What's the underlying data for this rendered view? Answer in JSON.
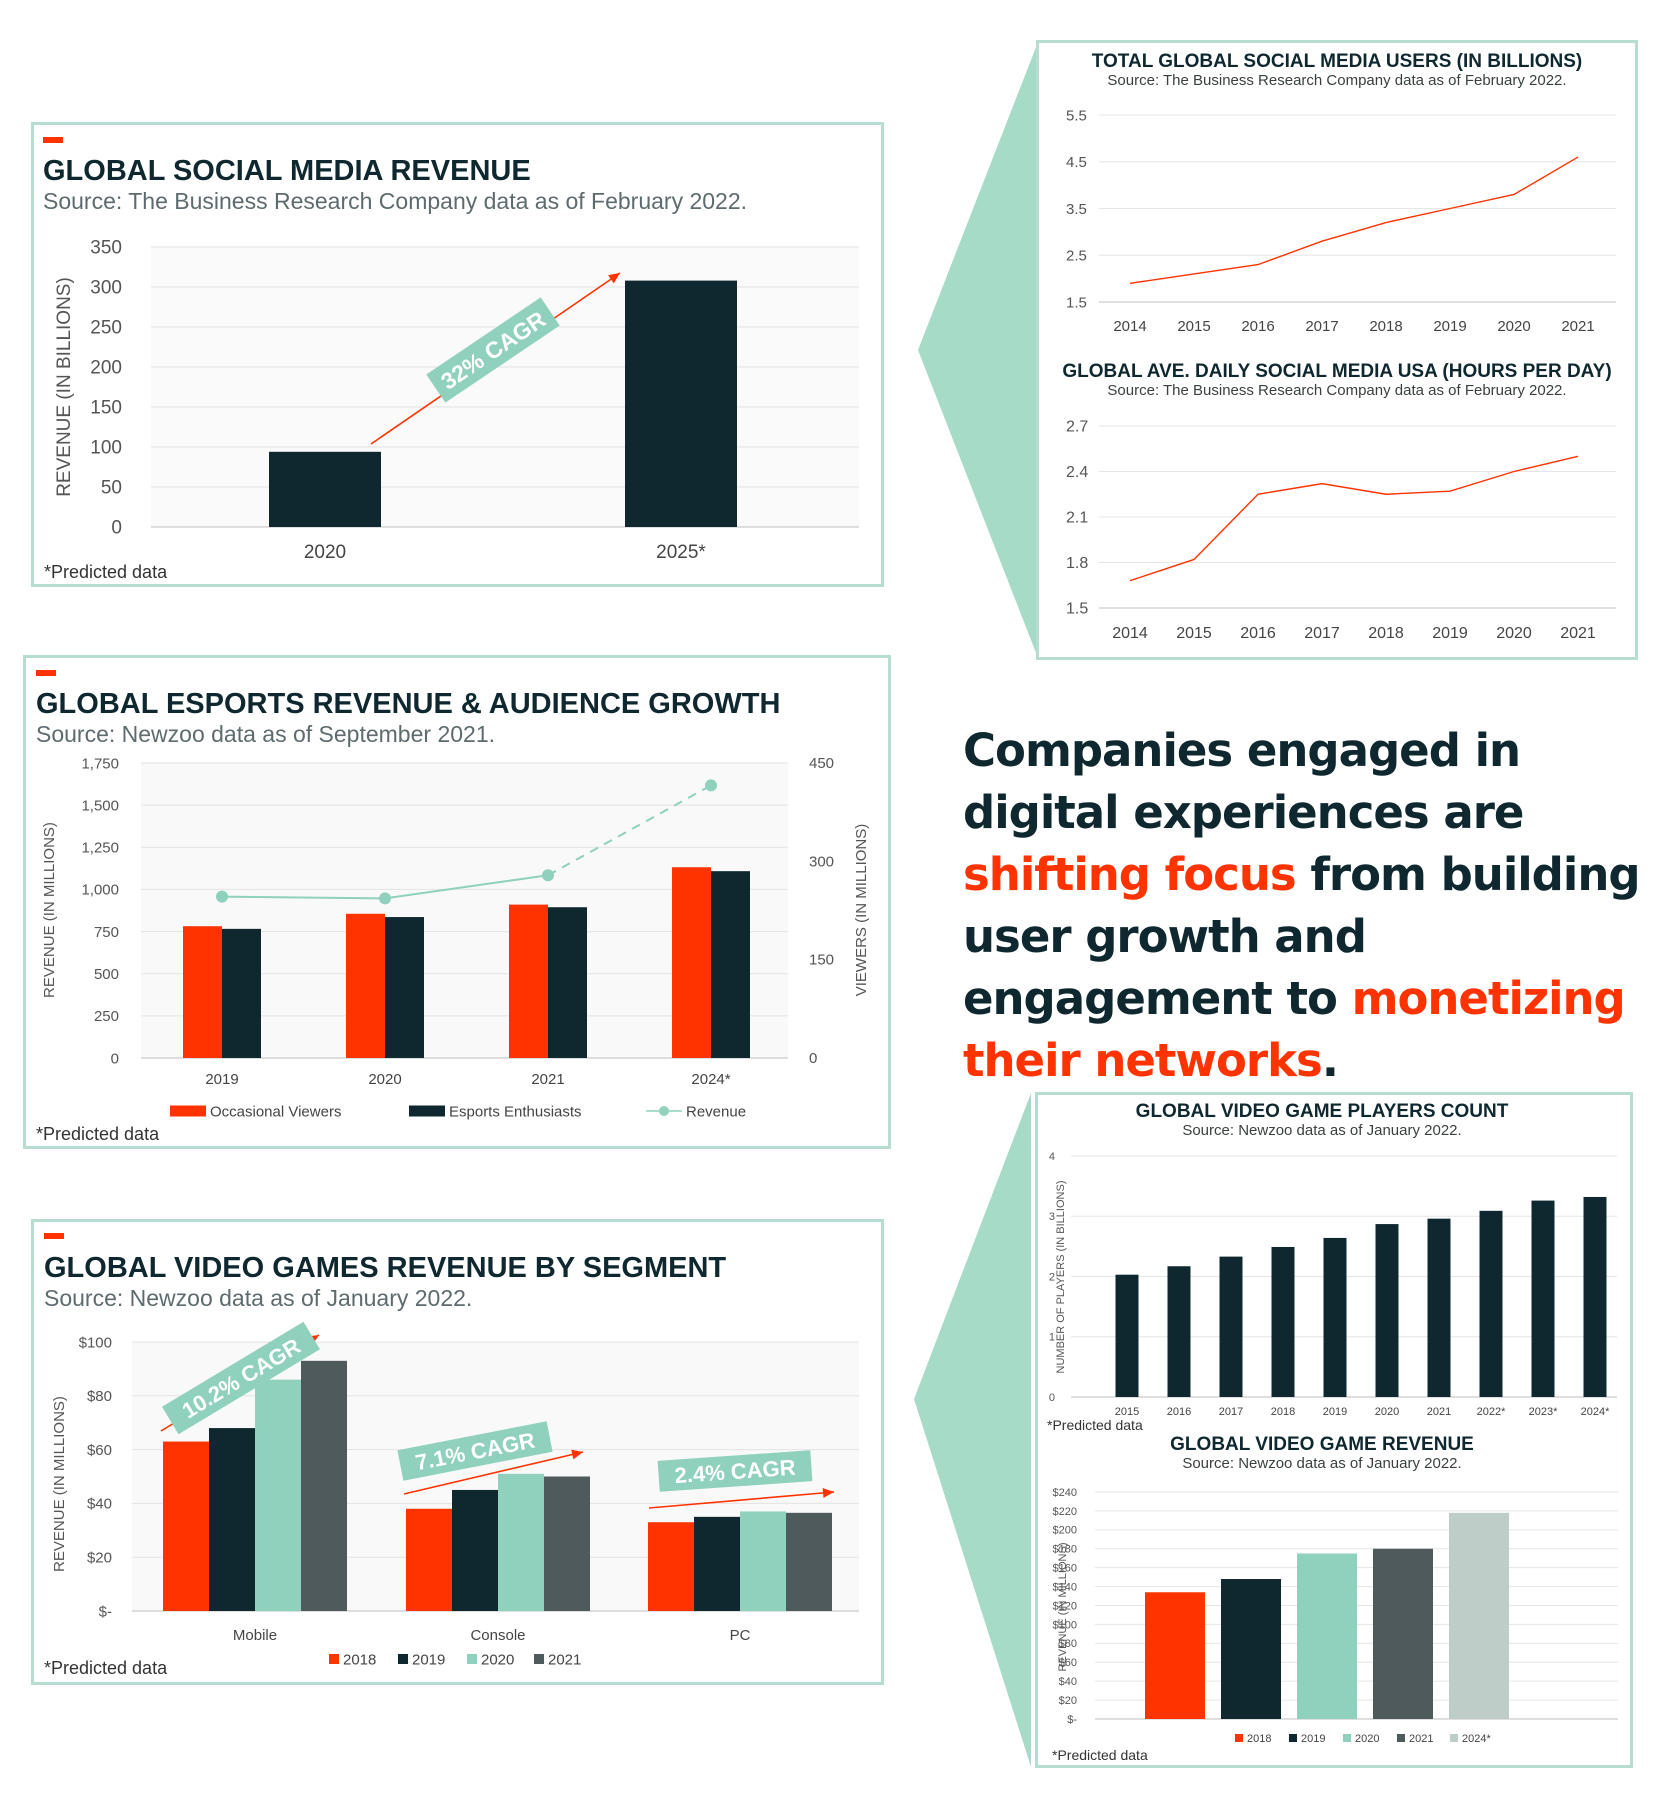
{
  "colors": {
    "red": "#ff3300",
    "navy": "#0f2830",
    "mint": "#8fd1bc",
    "slate": "#4e5a5b",
    "light": "#bfcdc8",
    "border": "#b7ddd0"
  },
  "headline": {
    "part1": "Companies engaged in digital experiences are ",
    "hl1": "shifting focus",
    "part2": " from building user growth and engagement to ",
    "hl2": "monetizing their networks",
    "part3": "."
  },
  "panels": {
    "social_revenue": {
      "title": "GLOBAL SOCIAL MEDIA REVENUE",
      "source": "Source: The Business Research Company data as of February 2022.",
      "note": "*Predicted data",
      "cagr": "32% CAGR"
    },
    "esports": {
      "title": "GLOBAL ESPORTS REVENUE & AUDIENCE GROWTH",
      "source": "Source: Newzoo data as of September 2021.",
      "note": "*Predicted data"
    },
    "vg_segment": {
      "title": "GLOBAL VIDEO GAMES REVENUE BY SEGMENT",
      "source": "Source: Newzoo data as of January 2022.",
      "note": "*Predicted data",
      "cagr": [
        "10.2% CAGR",
        "7.1% CAGR",
        "2.4% CAGR"
      ]
    },
    "social_users": {
      "title": "TOTAL GLOBAL SOCIAL MEDIA USERS (IN BILLIONS)",
      "source": "Source: The Business Research Company data as of February 2022."
    },
    "daily_usage": {
      "title": "GLOBAL AVE. DAILY SOCIAL MEDIA USA (HOURS PER DAY)",
      "source": "Source: The Business Research Company data as of February 2022."
    },
    "players": {
      "title": "GLOBAL VIDEO GAME PLAYERS COUNT",
      "source": "Source: Newzoo data as of January 2022.",
      "note": "*Predicted data"
    },
    "vg_revenue": {
      "title": "GLOBAL VIDEO GAME REVENUE",
      "source": "Source: Newzoo data as of January 2022.",
      "note": "*Predicted data"
    }
  },
  "chart_data": [
    {
      "id": "social_revenue",
      "type": "bar",
      "title": "GLOBAL SOCIAL MEDIA REVENUE",
      "categories": [
        "2020",
        "2025*"
      ],
      "values": [
        94,
        308
      ],
      "ylabel": "REVENUE (IN BILLIONS)",
      "ylim": [
        0,
        350
      ],
      "yticks": [
        "0",
        "50",
        "100",
        "150",
        "200",
        "250",
        "300",
        "350"
      ],
      "annotation": "32% CAGR",
      "grid": true
    },
    {
      "id": "esports",
      "type": "bar",
      "title": "GLOBAL ESPORTS REVENUE & AUDIENCE GROWTH",
      "categories": [
        "2019",
        "2020",
        "2021",
        "2024*"
      ],
      "series": [
        {
          "name": "Occasional Viewers",
          "values": [
            201,
            220,
            234,
            291
          ]
        },
        {
          "name": "Esports Enthusiasts",
          "values": [
            197,
            215,
            230,
            285
          ]
        },
        {
          "name": "Revenue",
          "type": "line",
          "axis": "left",
          "values": [
            957,
            947,
            1084,
            1617
          ]
        }
      ],
      "ylabel": "REVENUE (IN MILLIONS)",
      "y2label": "VIEWERS (IN MILLIONS)",
      "ylim": [
        0,
        1750
      ],
      "y2lim": [
        0,
        450
      ],
      "yticks": [
        "0",
        "250",
        "500",
        "750",
        "1,000",
        "1,250",
        "1,500",
        "1,750"
      ],
      "y2ticks": [
        "0",
        "150",
        "300",
        "450"
      ],
      "legend": "bottom",
      "grid": true
    },
    {
      "id": "vg_segment",
      "type": "bar",
      "title": "GLOBAL VIDEO GAMES REVENUE BY SEGMENT",
      "categories": [
        "Mobile",
        "Console",
        "PC"
      ],
      "series": [
        {
          "name": "2018",
          "values": [
            63,
            38,
            33
          ]
        },
        {
          "name": "2019",
          "values": [
            68,
            45,
            35
          ]
        },
        {
          "name": "2020",
          "values": [
            86,
            51,
            37
          ]
        },
        {
          "name": "2021",
          "values": [
            93,
            50,
            36.5
          ]
        }
      ],
      "ylabel": "REVENUE (IN MILLIONS)",
      "ylim": [
        0,
        100
      ],
      "yticks": [
        "$-",
        "$20",
        "$40",
        "$60",
        "$80",
        "$100"
      ],
      "annotations": [
        "10.2% CAGR",
        "7.1% CAGR",
        "2.4% CAGR"
      ],
      "legend": "bottom",
      "grid": true
    },
    {
      "id": "social_users",
      "type": "line",
      "title": "TOTAL GLOBAL SOCIAL MEDIA USERS (IN BILLIONS)",
      "x": [
        "2014",
        "2015",
        "2016",
        "2017",
        "2018",
        "2019",
        "2020",
        "2021"
      ],
      "values": [
        1.9,
        2.1,
        2.3,
        2.8,
        3.2,
        3.5,
        3.8,
        4.6
      ],
      "ylim": [
        1.5,
        5.5
      ],
      "yticks": [
        "1.5",
        "2.5",
        "3.5",
        "4.5",
        "5.5"
      ],
      "grid": true
    },
    {
      "id": "daily_usage",
      "type": "line",
      "title": "GLOBAL AVE. DAILY SOCIAL MEDIA USA (HOURS PER DAY)",
      "x": [
        "2014",
        "2015",
        "2016",
        "2017",
        "2018",
        "2019",
        "2020",
        "2021"
      ],
      "values": [
        1.68,
        1.82,
        2.25,
        2.32,
        2.25,
        2.27,
        2.4,
        2.5
      ],
      "ylim": [
        1.5,
        2.7
      ],
      "yticks": [
        "1.5",
        "1.8",
        "2.1",
        "2.4",
        "2.7"
      ],
      "grid": true
    },
    {
      "id": "players",
      "type": "bar",
      "title": "GLOBAL VIDEO GAME PLAYERS COUNT",
      "categories": [
        "2015",
        "2016",
        "2017",
        "2018",
        "2019",
        "2020",
        "2021",
        "2022*",
        "2023*",
        "2024*"
      ],
      "values": [
        2.03,
        2.17,
        2.33,
        2.49,
        2.64,
        2.87,
        2.96,
        3.09,
        3.26,
        3.32
      ],
      "ylabel": "NUMBER OF PLAYERS (IN BILLIONS)",
      "ylim": [
        0,
        4
      ],
      "yticks": [
        "0",
        "1",
        "2",
        "3",
        "4"
      ],
      "grid": true
    },
    {
      "id": "vg_revenue",
      "type": "bar",
      "title": "GLOBAL VIDEO GAME REVENUE",
      "categories": [
        "2018",
        "2019",
        "2020",
        "2021",
        "2024*"
      ],
      "values": [
        134,
        148,
        175,
        180,
        218
      ],
      "ylabel": "REVENUE (IN MILLIONS)",
      "ylim": [
        0,
        240
      ],
      "yticks": [
        "$-",
        "$20",
        "$40",
        "$60",
        "$80",
        "$100",
        "$120",
        "$140",
        "$160",
        "$180",
        "$200",
        "$220",
        "$240"
      ],
      "legend": "bottom",
      "grid": true
    }
  ]
}
